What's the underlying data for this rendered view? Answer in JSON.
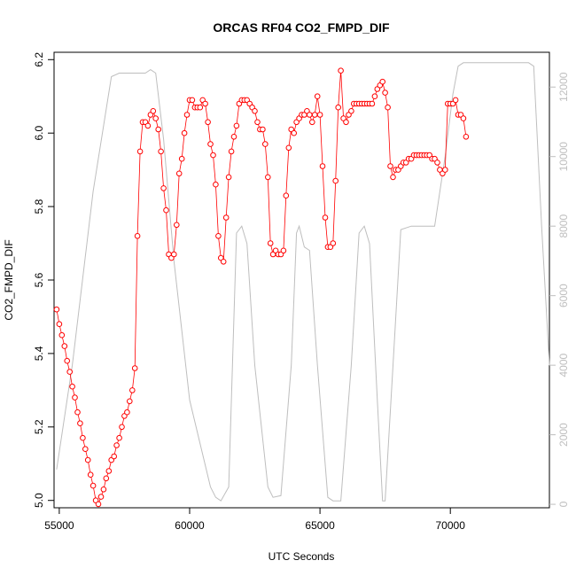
{
  "chart_data": {
    "type": "line",
    "title": "ORCAS RF04 CO2_FMPD_DIF",
    "xlabel": "UTC Seconds",
    "ylabel": "CO2_FMPD_DIF",
    "xlim": [
      54800,
      73800
    ],
    "ylim": [
      4.98,
      6.22
    ],
    "y2lim": [
      -100,
      13000
    ],
    "xticks": [
      55000,
      60000,
      65000,
      70000
    ],
    "xtick_labels": [
      "55000",
      "60000",
      "65000",
      "70000"
    ],
    "yticks": [
      5.0,
      5.2,
      5.4,
      5.6,
      5.8,
      6.0,
      6.2
    ],
    "ytick_labels": [
      "5.0",
      "5.2",
      "5.4",
      "5.6",
      "5.8",
      "6.0",
      "6.2"
    ],
    "y2ticks": [
      0,
      2000,
      4000,
      6000,
      8000,
      10000,
      12000
    ],
    "y2tick_labels": [
      "0",
      "2000",
      "4000",
      "6000",
      "8000",
      "10000",
      "12000"
    ],
    "grid": false,
    "colors": {
      "co2": "#ff0000",
      "altitude": "#bebebe",
      "axis": "#000000",
      "right_axis": "#bebebe"
    },
    "series": [
      {
        "style": "points-and-lines",
        "axis": "left",
        "points": [
          [
            54900,
            5.52
          ],
          [
            55000,
            5.48
          ],
          [
            55100,
            5.45
          ],
          [
            55200,
            5.42
          ],
          [
            55300,
            5.38
          ],
          [
            55400,
            5.35
          ],
          [
            55500,
            5.31
          ],
          [
            55600,
            5.28
          ],
          [
            55700,
            5.24
          ],
          [
            55800,
            5.21
          ],
          [
            55900,
            5.17
          ],
          [
            56000,
            5.14
          ],
          [
            56100,
            5.11
          ],
          [
            56200,
            5.07
          ],
          [
            56300,
            5.04
          ],
          [
            56400,
            5.0
          ],
          [
            56500,
            4.99
          ],
          [
            56600,
            5.01
          ],
          [
            56700,
            5.03
          ],
          [
            56800,
            5.06
          ],
          [
            56900,
            5.08
          ],
          [
            57000,
            5.11
          ],
          [
            57100,
            5.12
          ],
          [
            57200,
            5.15
          ],
          [
            57300,
            5.17
          ],
          [
            57400,
            5.2
          ],
          [
            57500,
            5.23
          ],
          [
            57600,
            5.24
          ],
          [
            57700,
            5.27
          ],
          [
            57800,
            5.3
          ],
          [
            57900,
            5.36
          ],
          [
            58000,
            5.72
          ],
          [
            58100,
            5.95
          ],
          [
            58200,
            6.03
          ],
          [
            58300,
            6.03
          ],
          [
            58400,
            6.02
          ],
          [
            58500,
            6.05
          ],
          [
            58600,
            6.06
          ],
          [
            58700,
            6.04
          ],
          [
            58800,
            6.01
          ],
          [
            58900,
            5.95
          ],
          [
            59000,
            5.85
          ],
          [
            59100,
            5.79
          ],
          [
            59200,
            5.67
          ],
          [
            59300,
            5.66
          ],
          [
            59400,
            5.67
          ],
          [
            59500,
            5.75
          ],
          [
            59600,
            5.89
          ],
          [
            59700,
            5.93
          ],
          [
            59800,
            6.0
          ],
          [
            59900,
            6.05
          ],
          [
            60000,
            6.09
          ],
          [
            60100,
            6.09
          ],
          [
            60200,
            6.07
          ],
          [
            60300,
            6.07
          ],
          [
            60400,
            6.07
          ],
          [
            60500,
            6.09
          ],
          [
            60600,
            6.08
          ],
          [
            60700,
            6.03
          ],
          [
            60800,
            5.97
          ],
          [
            60900,
            5.94
          ],
          [
            61000,
            5.86
          ],
          [
            61100,
            5.72
          ],
          [
            61200,
            5.66
          ],
          [
            61300,
            5.65
          ],
          [
            61400,
            5.77
          ],
          [
            61500,
            5.88
          ],
          [
            61600,
            5.95
          ],
          [
            61700,
            5.99
          ],
          [
            61800,
            6.02
          ],
          [
            61900,
            6.08
          ],
          [
            62000,
            6.09
          ],
          [
            62100,
            6.09
          ],
          [
            62200,
            6.09
          ],
          [
            62300,
            6.08
          ],
          [
            62400,
            6.07
          ],
          [
            62500,
            6.06
          ],
          [
            62600,
            6.03
          ],
          [
            62700,
            6.01
          ],
          [
            62800,
            6.01
          ],
          [
            62900,
            5.97
          ],
          [
            63000,
            5.88
          ],
          [
            63100,
            5.7
          ],
          [
            63200,
            5.67
          ],
          [
            63300,
            5.68
          ],
          [
            63400,
            5.67
          ],
          [
            63500,
            5.67
          ],
          [
            63600,
            5.68
          ],
          [
            63700,
            5.83
          ],
          [
            63800,
            5.96
          ],
          [
            63900,
            6.01
          ],
          [
            64000,
            6.0
          ],
          [
            64100,
            6.03
          ],
          [
            64200,
            6.04
          ],
          [
            64300,
            6.05
          ],
          [
            64400,
            6.05
          ],
          [
            64500,
            6.06
          ],
          [
            64600,
            6.05
          ],
          [
            64700,
            6.03
          ],
          [
            64800,
            6.05
          ],
          [
            64900,
            6.1
          ],
          [
            65000,
            6.05
          ],
          [
            65100,
            5.91
          ],
          [
            65200,
            5.77
          ],
          [
            65300,
            5.69
          ],
          [
            65400,
            5.69
          ],
          [
            65500,
            5.7
          ],
          [
            65600,
            5.87
          ],
          [
            65700,
            6.07
          ],
          [
            65800,
            6.17
          ],
          [
            65900,
            6.04
          ],
          [
            66000,
            6.03
          ],
          [
            66100,
            6.05
          ],
          [
            66200,
            6.06
          ],
          [
            66300,
            6.08
          ],
          [
            66400,
            6.08
          ],
          [
            66500,
            6.08
          ],
          [
            66600,
            6.08
          ],
          [
            66700,
            6.08
          ],
          [
            66800,
            6.08
          ],
          [
            66900,
            6.08
          ],
          [
            67000,
            6.08
          ],
          [
            67100,
            6.1
          ],
          [
            67200,
            6.12
          ],
          [
            67300,
            6.13
          ],
          [
            67400,
            6.14
          ],
          [
            67500,
            6.11
          ],
          [
            67600,
            6.07
          ],
          [
            67700,
            5.91
          ],
          [
            67800,
            5.88
          ],
          [
            67900,
            5.9
          ],
          [
            68000,
            5.9
          ],
          [
            68100,
            5.91
          ],
          [
            68200,
            5.92
          ],
          [
            68300,
            5.92
          ],
          [
            68400,
            5.93
          ],
          [
            68500,
            5.93
          ],
          [
            68600,
            5.94
          ],
          [
            68700,
            5.94
          ],
          [
            68800,
            5.94
          ],
          [
            68900,
            5.94
          ],
          [
            69000,
            5.94
          ],
          [
            69100,
            5.94
          ],
          [
            69200,
            5.94
          ],
          [
            69300,
            5.93
          ],
          [
            69400,
            5.93
          ],
          [
            69500,
            5.92
          ],
          [
            69600,
            5.9
          ],
          [
            69700,
            5.89
          ],
          [
            69800,
            5.9
          ],
          [
            69900,
            6.08
          ],
          [
            70000,
            6.08
          ],
          [
            70100,
            6.08
          ],
          [
            70200,
            6.09
          ],
          [
            70300,
            6.05
          ],
          [
            70400,
            6.05
          ],
          [
            70500,
            6.04
          ],
          [
            70600,
            5.99
          ]
        ]
      },
      {
        "style": "line",
        "axis": "right",
        "points": [
          [
            54900,
            1000
          ],
          [
            55500,
            4000
          ],
          [
            56300,
            9000
          ],
          [
            57000,
            12300
          ],
          [
            57300,
            12400
          ],
          [
            58000,
            12400
          ],
          [
            58300,
            12400
          ],
          [
            58500,
            12500
          ],
          [
            58700,
            12400
          ],
          [
            59000,
            10500
          ],
          [
            59400,
            7000
          ],
          [
            60000,
            3000
          ],
          [
            60800,
            500
          ],
          [
            61000,
            200
          ],
          [
            61200,
            100
          ],
          [
            61500,
            500
          ],
          [
            61800,
            7800
          ],
          [
            62000,
            8000
          ],
          [
            62200,
            7500
          ],
          [
            62500,
            4000
          ],
          [
            63000,
            500
          ],
          [
            63200,
            200
          ],
          [
            63500,
            250
          ],
          [
            63900,
            4000
          ],
          [
            64100,
            7800
          ],
          [
            64200,
            8000
          ],
          [
            64400,
            7400
          ],
          [
            64600,
            7300
          ],
          [
            64900,
            4000
          ],
          [
            65300,
            200
          ],
          [
            65500,
            100
          ],
          [
            65800,
            100
          ],
          [
            66200,
            4000
          ],
          [
            66500,
            7800
          ],
          [
            66700,
            8000
          ],
          [
            66900,
            7500
          ],
          [
            67200,
            3000
          ],
          [
            67400,
            100
          ],
          [
            67500,
            100
          ],
          [
            67800,
            4000
          ],
          [
            68100,
            7900
          ],
          [
            68500,
            8000
          ],
          [
            69000,
            8000
          ],
          [
            69400,
            8000
          ],
          [
            69800,
            10000
          ],
          [
            70100,
            11800
          ],
          [
            70300,
            12600
          ],
          [
            70500,
            12700
          ],
          [
            71000,
            12700
          ],
          [
            71500,
            12700
          ],
          [
            72000,
            12700
          ],
          [
            72500,
            12700
          ],
          [
            73000,
            12700
          ],
          [
            73200,
            12600
          ],
          [
            73500,
            8000
          ],
          [
            73800,
            4000
          ]
        ]
      }
    ]
  }
}
